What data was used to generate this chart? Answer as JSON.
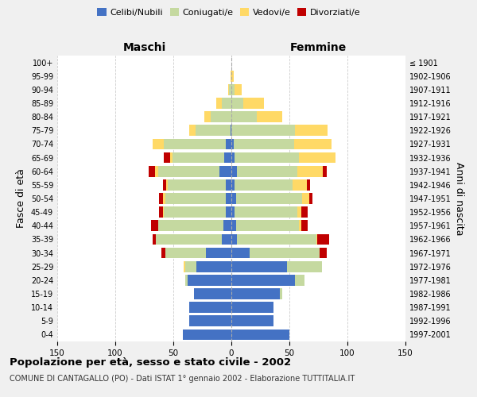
{
  "age_groups": [
    "100+",
    "95-99",
    "90-94",
    "85-89",
    "80-84",
    "75-79",
    "70-74",
    "65-69",
    "60-64",
    "55-59",
    "50-54",
    "45-49",
    "40-44",
    "35-39",
    "30-34",
    "25-29",
    "20-24",
    "15-19",
    "10-14",
    "5-9",
    "0-4"
  ],
  "birth_years": [
    "≤ 1901",
    "1902-1906",
    "1907-1911",
    "1912-1916",
    "1917-1921",
    "1922-1926",
    "1927-1931",
    "1932-1936",
    "1937-1941",
    "1942-1946",
    "1947-1951",
    "1952-1956",
    "1957-1961",
    "1962-1966",
    "1967-1971",
    "1972-1976",
    "1977-1981",
    "1982-1986",
    "1987-1991",
    "1992-1996",
    "1997-2001"
  ],
  "male": {
    "celibi": [
      0,
      0,
      0,
      0,
      0,
      1,
      5,
      6,
      10,
      5,
      5,
      5,
      7,
      8,
      22,
      30,
      38,
      32,
      36,
      36,
      42
    ],
    "coniugati": [
      0,
      0,
      2,
      8,
      18,
      30,
      53,
      45,
      53,
      50,
      52,
      53,
      56,
      57,
      35,
      10,
      2,
      0,
      0,
      0,
      0
    ],
    "vedovi": [
      0,
      1,
      1,
      5,
      5,
      5,
      10,
      2,
      3,
      1,
      2,
      1,
      0,
      0,
      0,
      1,
      0,
      0,
      0,
      0,
      0
    ],
    "divorziati": [
      0,
      0,
      0,
      0,
      0,
      0,
      0,
      5,
      5,
      3,
      3,
      3,
      6,
      3,
      3,
      0,
      0,
      0,
      0,
      0,
      0
    ]
  },
  "female": {
    "nubili": [
      0,
      0,
      0,
      0,
      0,
      0,
      2,
      3,
      5,
      3,
      4,
      3,
      4,
      5,
      16,
      48,
      55,
      42,
      36,
      36,
      50
    ],
    "coniugate": [
      0,
      0,
      3,
      10,
      22,
      55,
      52,
      55,
      52,
      50,
      57,
      54,
      54,
      68,
      60,
      30,
      8,
      2,
      0,
      0,
      0
    ],
    "vedove": [
      0,
      2,
      6,
      18,
      22,
      28,
      32,
      32,
      22,
      12,
      6,
      3,
      2,
      1,
      0,
      0,
      0,
      0,
      0,
      0,
      0
    ],
    "divorziate": [
      0,
      0,
      0,
      0,
      0,
      0,
      0,
      0,
      3,
      3,
      3,
      6,
      6,
      10,
      6,
      0,
      0,
      0,
      0,
      0,
      0
    ]
  },
  "colors": {
    "celibi": "#4472C4",
    "coniugati": "#c5d9a0",
    "vedovi": "#FFD966",
    "divorziati": "#C00000"
  },
  "xlim": 150,
  "title": "Popolazione per età, sesso e stato civile - 2002",
  "subtitle": "COMUNE DI CANTAGALLO (PO) - Dati ISTAT 1° gennaio 2002 - Elaborazione TUTTITALIA.IT",
  "ylabel": "Fasce di età",
  "ylabel_right": "Anni di nascita",
  "xlabel_left": "Maschi",
  "xlabel_right": "Femmine",
  "bg_color": "#f0f0f0",
  "plot_bg": "#ffffff"
}
